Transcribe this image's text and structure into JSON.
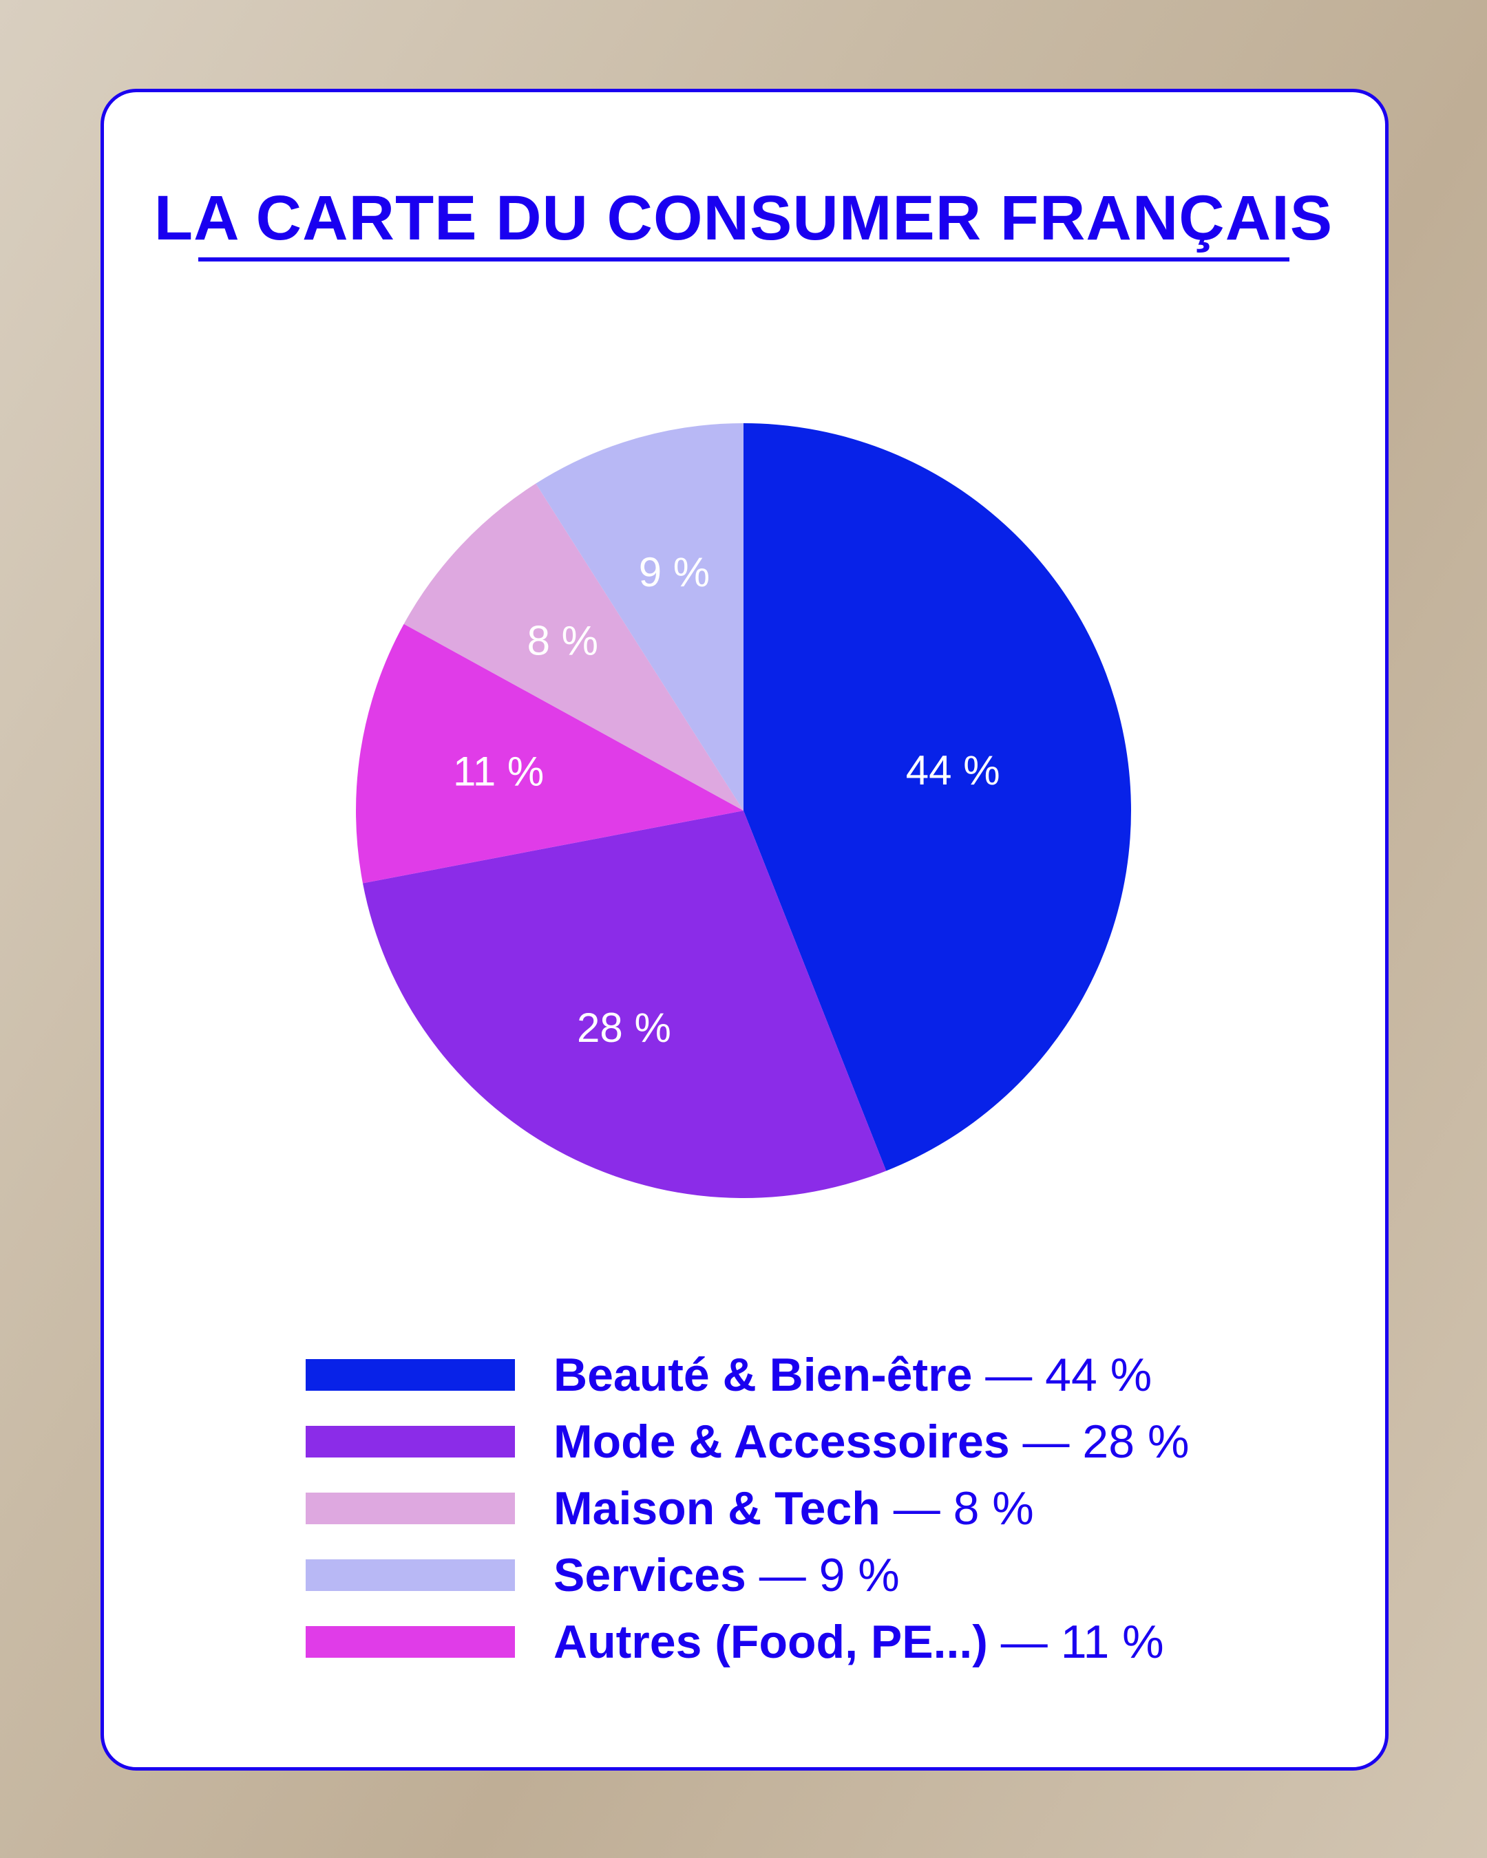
{
  "chart_data": {
    "type": "pie",
    "title": "LA CARTE DU CONSUMER FRANÇAIS",
    "slices": [
      {
        "name": "Beauté & Bien-être",
        "value": 44,
        "label": "44 %",
        "color": "#0822e8"
      },
      {
        "name": "Mode & Accessoires",
        "value": 28,
        "label": "28 %",
        "color": "#8b2ce8"
      },
      {
        "name": "Autres (Food, PE...)",
        "value": 11,
        "label": "11 %",
        "color": "#e03ce8"
      },
      {
        "name": "Maison & Tech",
        "value": 8,
        "label": "8 %",
        "color": "#dea8e0"
      },
      {
        "name": "Services",
        "value": 9,
        "label": "9 %",
        "color": "#b8b8f5"
      }
    ],
    "legend": [
      {
        "name": "Beauté & Bien-être",
        "suffix": " — 44 %",
        "color": "#0822e8"
      },
      {
        "name": "Mode & Accessoires",
        "suffix": " — 28 %",
        "color": "#8b2ce8"
      },
      {
        "name": "Maison & Tech",
        "suffix": " — 8 %",
        "color": "#dea8e0"
      },
      {
        "name": "Services",
        "suffix": " — 9 %",
        "color": "#b8b8f5"
      },
      {
        "name": "Autres (Food, PE...)",
        "suffix": " — 11 %",
        "color": "#e03ce8"
      }
    ],
    "legend_placement": "bottom"
  }
}
